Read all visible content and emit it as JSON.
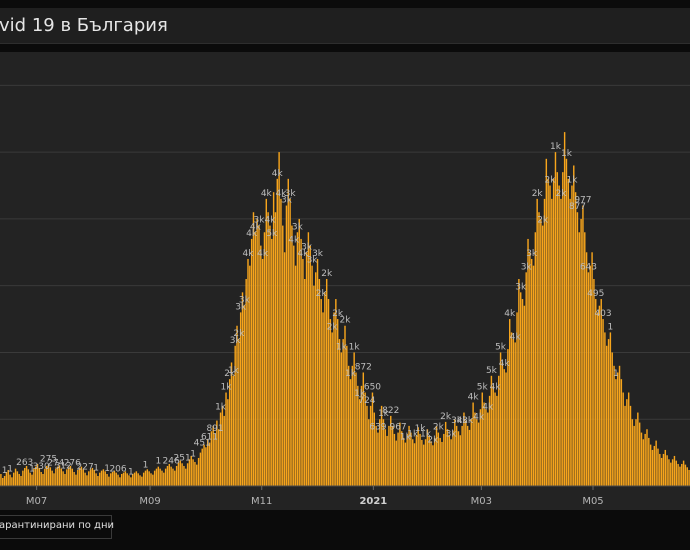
{
  "header": {
    "title": "ovid 19 в България"
  },
  "legend": {
    "label": "арантинирани по дни"
  },
  "colors": {
    "bar": "#f7a51c",
    "background": "#232323",
    "grid": "#3a3a3a"
  },
  "chart_data": {
    "type": "bar",
    "title": "ovid 19 в България",
    "y_grid_values": [
      0,
      1000,
      2000,
      3000,
      4000,
      5000,
      6000
    ],
    "x_ticks": [
      {
        "label": "M07",
        "day": 20,
        "bold": false
      },
      {
        "label": "M09",
        "day": 82,
        "bold": false
      },
      {
        "label": "M11",
        "day": 143,
        "bold": false
      },
      {
        "label": "2021",
        "day": 204,
        "bold": true
      },
      {
        "label": "M03",
        "day": 263,
        "bold": false
      },
      {
        "label": "M05",
        "day": 324,
        "bold": false
      }
    ],
    "series": [
      {
        "values": [
          180,
          120,
          150,
          210,
          240,
          170,
          130,
          200,
          260,
          220,
          180,
          150,
          230,
          270,
          300,
          250,
          200,
          170,
          260,
          290,
          330,
          270,
          210,
          180,
          260,
          300,
          320,
          280,
          230,
          190,
          260,
          290,
          310,
          260,
          220,
          180,
          250,
          280,
          300,
          260,
          210,
          170,
          240,
          270,
          290,
          250,
          200,
          160,
          220,
          250,
          270,
          240,
          190,
          150,
          200,
          230,
          250,
          220,
          180,
          140,
          190,
          210,
          230,
          200,
          170,
          130,
          180,
          200,
          220,
          190,
          160,
          130,
          180,
          200,
          220,
          190,
          160,
          140,
          200,
          230,
          250,
          220,
          190,
          170,
          230,
          260,
          290,
          260,
          230,
          200,
          260,
          300,
          330,
          290,
          260,
          230,
          300,
          350,
          380,
          340,
          300,
          260,
          340,
          400,
          450,
          400,
          360,
          320,
          420,
          500,
          560,
          620,
          580,
          700,
          650,
          820,
          900,
          780,
          980,
          850,
          1100,
          1200,
          1050,
          1400,
          1300,
          1600,
          1850,
          1650,
          2100,
          2400,
          2200,
          2600,
          2900,
          2700,
          3100,
          3400,
          3300,
          3700,
          4100,
          3800,
          4000,
          3900,
          3600,
          3400,
          3800,
          4300,
          4100,
          3900,
          3700,
          4400,
          4100,
          4600,
          5000,
          4300,
          3900,
          3500,
          4200,
          4600,
          4300,
          3900,
          3600,
          3300,
          3800,
          4000,
          3700,
          3400,
          3100,
          3500,
          3800,
          3600,
          3300,
          3000,
          3200,
          3400,
          3100,
          2800,
          2600,
          2900,
          3100,
          2800,
          2500,
          2300,
          2600,
          2800,
          2500,
          2200,
          2000,
          2200,
          2400,
          2100,
          1800,
          1600,
          1800,
          2000,
          1700,
          1500,
          1300,
          1500,
          1700,
          1400,
          1200,
          1000,
          1200,
          1400,
          1100,
          900,
          800,
          1000,
          1200,
          1000,
          850,
          750,
          900,
          1050,
          900,
          780,
          680,
          800,
          950,
          820,
          720,
          650,
          780,
          900,
          800,
          700,
          640,
          760,
          880,
          780,
          690,
          620,
          700,
          850,
          750,
          670,
          610,
          720,
          900,
          800,
          720,
          660,
          780,
          960,
          850,
          760,
          700,
          830,
          1000,
          900,
          820,
          760,
          900,
          1100,
          980,
          900,
          840,
          1000,
          1250,
          1100,
          1000,
          950,
          1150,
          1400,
          1250,
          1150,
          1100,
          1350,
          1650,
          1500,
          1400,
          1350,
          1650,
          2000,
          1850,
          1750,
          1700,
          2050,
          2500,
          2300,
          2200,
          2150,
          2600,
          3100,
          2900,
          2800,
          2700,
          3200,
          3700,
          3500,
          3400,
          3300,
          3800,
          4300,
          4100,
          4000,
          3900,
          4300,
          4900,
          4600,
          4500,
          4300,
          4600,
          5000,
          4700,
          4500,
          4300,
          4700,
          5300,
          4900,
          4600,
          4300,
          4500,
          4800,
          4400,
          4100,
          3800,
          4000,
          4200,
          3800,
          3500,
          3200,
          3300,
          3500,
          3100,
          2800,
          2600,
          2700,
          2800,
          2500,
          2300,
          2100,
          2200,
          2300,
          2000,
          1800,
          1600,
          1700,
          1800,
          1600,
          1400,
          1200,
          1300,
          1400,
          1200,
          1000,
          900,
          1000,
          1100,
          950,
          800,
          700,
          780,
          850,
          720,
          620,
          540,
          600,
          680,
          560,
          480,
          420,
          480,
          540,
          460,
          400,
          350,
          400,
          450,
          380,
          330,
          290,
          330,
          380,
          320,
          280,
          240
        ]
      }
    ],
    "data_labels": [
      {
        "day": 2,
        "text": "1"
      },
      {
        "day": 5,
        "text": "1"
      },
      {
        "day": 13,
        "text": "263"
      },
      {
        "day": 17,
        "text": "1"
      },
      {
        "day": 22,
        "text": "330"
      },
      {
        "day": 26,
        "text": "275"
      },
      {
        "day": 30,
        "text": "274"
      },
      {
        "day": 34,
        "text": "312"
      },
      {
        "day": 39,
        "text": "276"
      },
      {
        "day": 46,
        "text": "227"
      },
      {
        "day": 52,
        "text": "1"
      },
      {
        "day": 58,
        "text": "1"
      },
      {
        "day": 64,
        "text": "206"
      },
      {
        "day": 71,
        "text": "1"
      },
      {
        "day": 79,
        "text": "1"
      },
      {
        "day": 86,
        "text": "1"
      },
      {
        "day": 93,
        "text": "246"
      },
      {
        "day": 99,
        "text": "251"
      },
      {
        "day": 105,
        "text": "1"
      },
      {
        "day": 110,
        "text": "451"
      },
      {
        "day": 114,
        "text": "611"
      },
      {
        "day": 117,
        "text": "891"
      },
      {
        "day": 120,
        "text": "1k"
      },
      {
        "day": 123,
        "text": "1k"
      },
      {
        "day": 125,
        "text": "2k"
      },
      {
        "day": 127,
        "text": "1k"
      },
      {
        "day": 128,
        "text": "3k"
      },
      {
        "day": 130,
        "text": "2k"
      },
      {
        "day": 131,
        "text": "3k"
      },
      {
        "day": 133,
        "text": "3k"
      },
      {
        "day": 135,
        "text": "4k"
      },
      {
        "day": 137,
        "text": "4k"
      },
      {
        "day": 139,
        "text": "4k"
      },
      {
        "day": 141,
        "text": "3k"
      },
      {
        "day": 143,
        "text": "4k"
      },
      {
        "day": 145,
        "text": "4k"
      },
      {
        "day": 147,
        "text": "4k"
      },
      {
        "day": 148,
        "text": "5k"
      },
      {
        "day": 151,
        "text": "4k"
      },
      {
        "day": 153,
        "text": "4k"
      },
      {
        "day": 156,
        "text": "3k"
      },
      {
        "day": 158,
        "text": "3k"
      },
      {
        "day": 160,
        "text": "4k"
      },
      {
        "day": 162,
        "text": "3k"
      },
      {
        "day": 165,
        "text": "4k"
      },
      {
        "day": 167,
        "text": "3k"
      },
      {
        "day": 170,
        "text": "3k"
      },
      {
        "day": 173,
        "text": "3k"
      },
      {
        "day": 175,
        "text": "2k"
      },
      {
        "day": 178,
        "text": "2k"
      },
      {
        "day": 181,
        "text": "2k"
      },
      {
        "day": 184,
        "text": "2k"
      },
      {
        "day": 186,
        "text": "1k"
      },
      {
        "day": 188,
        "text": "2k"
      },
      {
        "day": 191,
        "text": "1k"
      },
      {
        "day": 193,
        "text": "1k"
      },
      {
        "day": 196,
        "text": "1k"
      },
      {
        "day": 198,
        "text": "872"
      },
      {
        "day": 200,
        "text": "724"
      },
      {
        "day": 203,
        "text": "650"
      },
      {
        "day": 206,
        "text": "639"
      },
      {
        "day": 209,
        "text": "1k"
      },
      {
        "day": 213,
        "text": "822"
      },
      {
        "day": 217,
        "text": "967"
      },
      {
        "day": 221,
        "text": "1k"
      },
      {
        "day": 225,
        "text": "1k"
      },
      {
        "day": 229,
        "text": "1k"
      },
      {
        "day": 232,
        "text": "1k"
      },
      {
        "day": 236,
        "text": "2k"
      },
      {
        "day": 239,
        "text": "2k"
      },
      {
        "day": 243,
        "text": "2k"
      },
      {
        "day": 246,
        "text": "3k"
      },
      {
        "day": 249,
        "text": "3k"
      },
      {
        "day": 252,
        "text": "4k"
      },
      {
        "day": 255,
        "text": "3k"
      },
      {
        "day": 258,
        "text": "4k"
      },
      {
        "day": 261,
        "text": "4k"
      },
      {
        "day": 263,
        "text": "5k"
      },
      {
        "day": 266,
        "text": "4k"
      },
      {
        "day": 268,
        "text": "5k"
      },
      {
        "day": 270,
        "text": "4k"
      },
      {
        "day": 273,
        "text": "5k"
      },
      {
        "day": 275,
        "text": "4k"
      },
      {
        "day": 278,
        "text": "4k"
      },
      {
        "day": 281,
        "text": "4k"
      },
      {
        "day": 284,
        "text": "3k"
      },
      {
        "day": 287,
        "text": "3k"
      },
      {
        "day": 290,
        "text": "3k"
      },
      {
        "day": 293,
        "text": "2k"
      },
      {
        "day": 296,
        "text": "2k"
      },
      {
        "day": 300,
        "text": "2k"
      },
      {
        "day": 303,
        "text": "1k"
      },
      {
        "day": 306,
        "text": "2k"
      },
      {
        "day": 309,
        "text": "1k"
      },
      {
        "day": 312,
        "text": "1k"
      },
      {
        "day": 315,
        "text": "877"
      },
      {
        "day": 318,
        "text": "977"
      },
      {
        "day": 321,
        "text": "643"
      },
      {
        "day": 325,
        "text": "495"
      },
      {
        "day": 329,
        "text": "403"
      },
      {
        "day": 333,
        "text": "1"
      },
      {
        "day": 336,
        "text": "1"
      }
    ]
  }
}
